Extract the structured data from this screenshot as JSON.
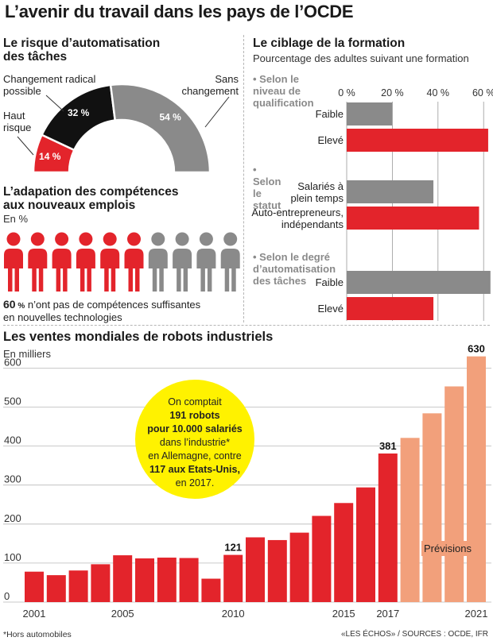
{
  "title": "L’avenir du travail dans les pays de l’OCDE",
  "footnote": "*Hors automobiles",
  "sources": "«LES ÉCHOS» / SOURCES : OCDE, IFR",
  "automation": {
    "title_line1": "Le risque d’automatisation",
    "title_line2": "des tâches",
    "label_change_1": "Changement radical",
    "label_change_2": "possible",
    "label_high_1": "Haut",
    "label_high_2": "risque",
    "label_none_1": "Sans",
    "label_none_2": "changement"
  },
  "skills": {
    "title_line1": "L’adapation des compétences",
    "title_line2": "aux nouveaux emplois",
    "unit": "En %",
    "pct_value": "60",
    "pct_sign": "%",
    "text_line1": " n’ont pas de compétences suffisantes",
    "text_line2": "en nouvelles technologies"
  },
  "training": {
    "title": "Le ciblage de la formation",
    "subtitle": "Pourcentage des adultes suivant une formation",
    "ticks": [
      "0 %",
      "20 %",
      "40 %",
      "60 %"
    ],
    "groups": [
      {
        "title": "• Selon le niveau de qualification",
        "rows": [
          {
            "label1": "Faible",
            "label2": "",
            "value": 20
          },
          {
            "label1": "Elevé",
            "label2": "",
            "value": 62
          }
        ]
      },
      {
        "title": "• Selon le statut",
        "rows": [
          {
            "label1": "Salariés à",
            "label2": "plein temps",
            "value": 38
          },
          {
            "label1": "Auto-entrepreneurs,",
            "label2": "indépendants",
            "value": 58
          }
        ]
      },
      {
        "title": "• Selon le degré d’automatisation des tâches",
        "rows": [
          {
            "label1": "Faible",
            "label2": "",
            "value": 63
          },
          {
            "label1": "Elevé",
            "label2": "",
            "value": 38
          }
        ]
      }
    ]
  },
  "robots": {
    "title": "Les ventes mondiales de robots industriels",
    "unit": "En milliers",
    "forecast_label": "Prévisions",
    "callout": {
      "l1": "On comptait",
      "l2": "191 robots",
      "l3": "pour 10.000 salariés",
      "l4": "dans l’industrie*",
      "l5": "en Allemagne, contre",
      "l6": "117 aux Etats-Unis,",
      "l7": "en 2017."
    }
  },
  "colors": {
    "red": "#e3242b",
    "gray": "#8a8a8a",
    "black": "#111111",
    "forecast": "#f2a07b",
    "callout": "#fff200"
  },
  "chart_data": [
    {
      "type": "pie",
      "title": "Le risque d’automatisation des tâches",
      "slices": [
        {
          "label": "Haut risque",
          "value": 14,
          "display": "14 %",
          "color": "#e3242b"
        },
        {
          "label": "Changement radical possible",
          "value": 32,
          "display": "32 %",
          "color": "#111111"
        },
        {
          "label": "Sans changement",
          "value": 54,
          "display": "54 %",
          "color": "#8a8a8a"
        }
      ]
    },
    {
      "type": "bar",
      "title": "L’adapation des compétences aux nouveaux emplois",
      "unit": "En %",
      "figures": 10,
      "highlighted": 6,
      "value": 60
    },
    {
      "type": "bar",
      "title": "Le ciblage de la formation",
      "xlim": [
        0,
        65
      ],
      "ticks": [
        0,
        20,
        40,
        60
      ],
      "series": [
        {
          "name": "Selon le niveau de qualification",
          "categories": [
            "Faible",
            "Elevé"
          ],
          "values": [
            20,
            62
          ]
        },
        {
          "name": "Selon le statut",
          "categories": [
            "Salariés à plein temps",
            "Auto-entrepreneurs, indépendants"
          ],
          "values": [
            38,
            58
          ]
        },
        {
          "name": "Selon le degré d’automatisation des tâches",
          "categories": [
            "Faible",
            "Elevé"
          ],
          "values": [
            63,
            38
          ]
        }
      ]
    },
    {
      "type": "bar",
      "title": "Les ventes mondiales de robots industriels",
      "ylabel": "En milliers",
      "ylim": [
        0,
        650
      ],
      "yticks": [
        0,
        100,
        200,
        300,
        400,
        500,
        600
      ],
      "categories": [
        2001,
        2002,
        2003,
        2004,
        2005,
        2006,
        2007,
        2008,
        2009,
        2010,
        2011,
        2012,
        2013,
        2014,
        2015,
        2016,
        2017,
        2018,
        2019,
        2020,
        2021
      ],
      "values": [
        78,
        69,
        81,
        97,
        120,
        112,
        114,
        113,
        60,
        121,
        166,
        159,
        178,
        221,
        254,
        294,
        381,
        421,
        484,
        553,
        630
      ],
      "forecast_from": 2018,
      "xtick_labels": [
        "2001",
        "2005",
        "2010",
        "2015",
        "2017",
        "2021"
      ],
      "value_labels": {
        "2010": "121",
        "2017": "381",
        "2021": "630"
      }
    }
  ]
}
